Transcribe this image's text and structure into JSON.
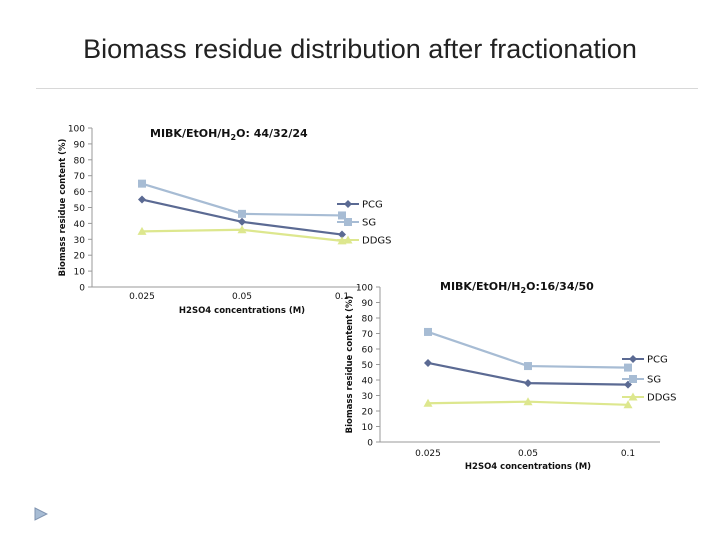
{
  "slide": {
    "title": "Biomass residue distribution after fractionation"
  },
  "colors": {
    "PCG": "#5b6a93",
    "SG": "#a7bcd4",
    "DDGS": "#dde78e",
    "axis": "#999999",
    "text": "#111111"
  },
  "chart_data": [
    {
      "type": "line",
      "title": "MIBK/EtOH/H2O: 44/32/24",
      "title_parts": {
        "pre": "MIBK/EtOH/H",
        "sub": "2",
        "post": "O: 44/32/24"
      },
      "xlabel": "H2SO4 concentrations (M)",
      "ylabel": "Biomass residue content (%)",
      "categories": [
        "0.025",
        "0.05",
        "0.1"
      ],
      "yticks": [
        "0",
        "10",
        "20",
        "30",
        "40",
        "50",
        "60",
        "70",
        "80",
        "90",
        "100"
      ],
      "ylim": [
        0,
        100
      ],
      "legend_position": "right",
      "series": [
        {
          "name": "PCG",
          "values": [
            55,
            41,
            33
          ]
        },
        {
          "name": "SG",
          "values": [
            65,
            46,
            45
          ]
        },
        {
          "name": "DDGS",
          "values": [
            35,
            36,
            29
          ]
        }
      ]
    },
    {
      "type": "line",
      "title": "MIBK/EtOH/H2O:16/34/50",
      "title_parts": {
        "pre": "MIBK/EtOH/H",
        "sub": "2",
        "post": "O:16/34/50"
      },
      "xlabel": "H2SO4 concentrations (M)",
      "ylabel": "Biomass residue content (%)",
      "categories": [
        "0.025",
        "0.05",
        "0.1"
      ],
      "yticks": [
        "0",
        "10",
        "20",
        "30",
        "40",
        "50",
        "60",
        "70",
        "80",
        "90",
        "100"
      ],
      "ylim": [
        0,
        100
      ],
      "legend_position": "right",
      "series": [
        {
          "name": "PCG",
          "values": [
            51,
            38,
            37
          ]
        },
        {
          "name": "SG",
          "values": [
            71,
            49,
            48
          ]
        },
        {
          "name": "DDGS",
          "values": [
            25,
            26,
            24
          ]
        }
      ]
    }
  ]
}
